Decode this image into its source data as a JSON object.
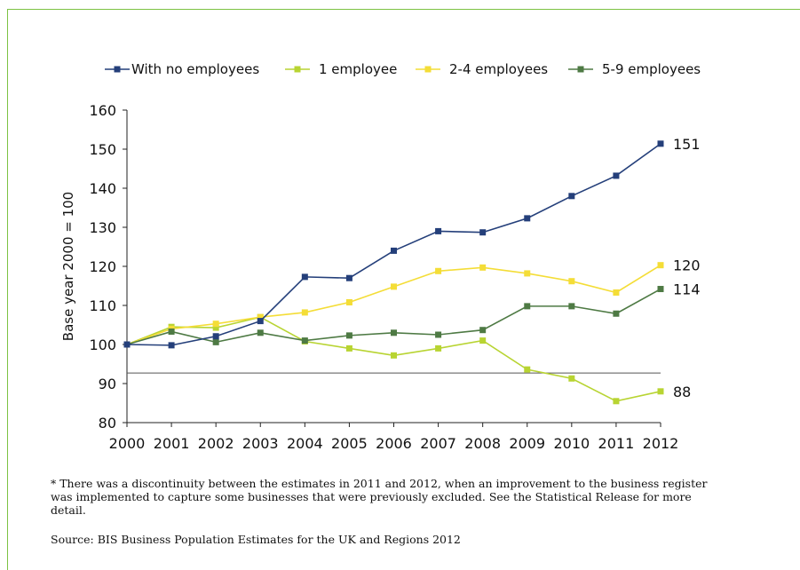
{
  "chart_data": {
    "type": "line",
    "x": [
      "2000",
      "2001",
      "2002",
      "2003",
      "2004",
      "2005",
      "2006",
      "2007",
      "2008",
      "2009",
      "2010",
      "2011",
      "2012"
    ],
    "ylabel": "Base year 2000 = 100",
    "ylim": [
      80,
      160
    ],
    "yticks": [
      80,
      90,
      100,
      110,
      120,
      130,
      140,
      150,
      160
    ],
    "legend_position": "top",
    "grid": false,
    "reference_line": 92.7,
    "series": [
      {
        "name": "With no employees",
        "color": "#243f7a",
        "values": [
          100,
          99.8,
          102.1,
          106,
          117.3,
          117,
          124,
          129,
          128.7,
          132.3,
          138,
          143.2,
          151.4
        ],
        "end_label": "151"
      },
      {
        "name": "1 employee",
        "color": "#b8d432",
        "values": [
          100,
          104.5,
          104.3,
          107,
          100.8,
          99,
          97.2,
          99,
          101,
          93.6,
          91.3,
          85.5,
          88
        ],
        "end_label": "88"
      },
      {
        "name": "2-4 employees",
        "color": "#f4dd37",
        "values": [
          100,
          104,
          105.3,
          107,
          108.2,
          110.8,
          114.8,
          118.8,
          119.7,
          118.2,
          116.2,
          113.3,
          120.3
        ],
        "end_label": "120"
      },
      {
        "name": "5-9 employees",
        "color": "#4e7a44",
        "values": [
          100,
          103.3,
          100.6,
          103,
          101,
          102.3,
          103,
          102.5,
          103.7,
          109.8,
          109.8,
          107.9,
          114.2
        ],
        "end_label": "114"
      }
    ]
  },
  "footnote": "* There was a discontinuity between the estimates in 2011 and 2012, when an improvement to the business register was implemented to capture some businesses that were previously excluded. See the Statistical Release for more detail.",
  "source": "Source: BIS Business Population Estimates for the UK and Regions 2012"
}
